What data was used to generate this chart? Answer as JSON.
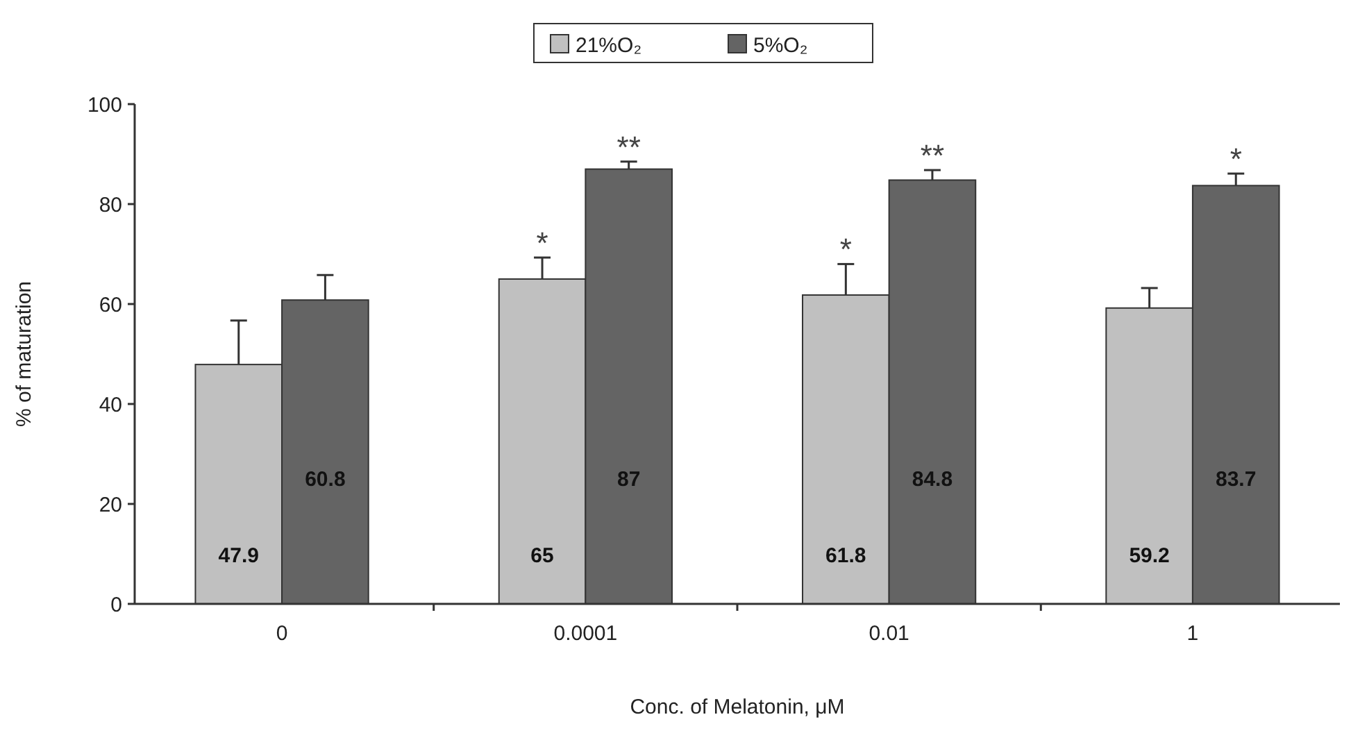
{
  "chart_data": {
    "type": "bar",
    "xlabel": "Conc. of Melatonin, μM",
    "ylabel": "% of maturation",
    "categories": [
      "0",
      "0.0001",
      "0.01",
      "1"
    ],
    "series": [
      {
        "name": "21%O₂",
        "color": "#c0c0c0",
        "values": [
          47.9,
          65,
          61.8,
          59.2
        ],
        "errors": [
          8.8,
          4.3,
          6.2,
          4.0
        ]
      },
      {
        "name": "5%O₂",
        "color": "#646464",
        "values": [
          60.8,
          87,
          84.8,
          83.7
        ],
        "errors": [
          5.0,
          1.5,
          2.0,
          2.4
        ]
      }
    ],
    "ylim": [
      0,
      100
    ],
    "yticks": [
      0,
      20,
      40,
      60,
      80,
      100
    ],
    "data_labels": true,
    "legend": "top",
    "grid": false,
    "annotations": [
      {
        "text": "*",
        "x": "0.0001",
        "y": 65
      },
      {
        "text": "**",
        "x": "0.0001",
        "y": 87
      },
      {
        "text": "*",
        "x": "0.01",
        "y": 61.8
      },
      {
        "text": "**",
        "x": "0.01",
        "y": 84.8
      },
      {
        "text": "*",
        "x": "1",
        "y": 83.7
      }
    ]
  }
}
